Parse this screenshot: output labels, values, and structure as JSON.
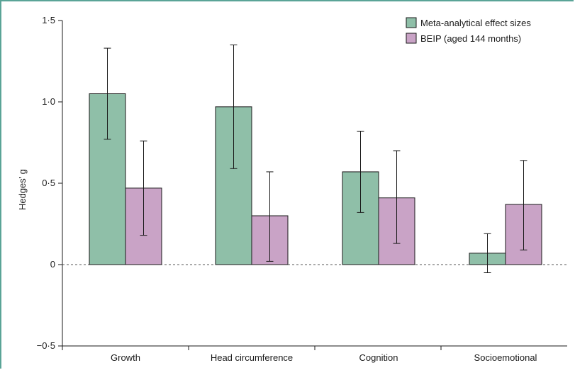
{
  "chart_data": {
    "type": "bar",
    "title": "",
    "xlabel": "",
    "ylabel": "Hedges’ g",
    "ylim": [
      -0.5,
      1.5
    ],
    "yticks": [
      {
        "value": -0.5,
        "label": "−0·5"
      },
      {
        "value": 0,
        "label": "0"
      },
      {
        "value": 0.5,
        "label": "0·5"
      },
      {
        "value": 1.0,
        "label": "1·0"
      },
      {
        "value": 1.5,
        "label": "1·5"
      }
    ],
    "categories": [
      "Growth",
      "Head circumference",
      "Cognition",
      "Socioemotional"
    ],
    "series": [
      {
        "name": "Meta-analytical effect sizes",
        "color": "#8fbfa8",
        "values": [
          1.05,
          0.97,
          0.57,
          0.07
        ],
        "err_low": [
          0.77,
          0.59,
          0.32,
          -0.05
        ],
        "err_high": [
          1.33,
          1.35,
          0.82,
          0.19
        ]
      },
      {
        "name": "BEIP (aged 144 months)",
        "color": "#c9a3c6",
        "values": [
          0.47,
          0.3,
          0.41,
          0.37
        ],
        "err_low": [
          0.18,
          0.02,
          0.13,
          0.09
        ],
        "err_high": [
          0.76,
          0.57,
          0.7,
          0.64
        ]
      }
    ],
    "reference_line": {
      "value": 0,
      "style": "dashed"
    },
    "legend_position": "top-right",
    "grid": false
  },
  "colors": {
    "frame": "#5aa497",
    "axis": "#1a1a1a",
    "bar_stroke": "#1a1a1a"
  }
}
